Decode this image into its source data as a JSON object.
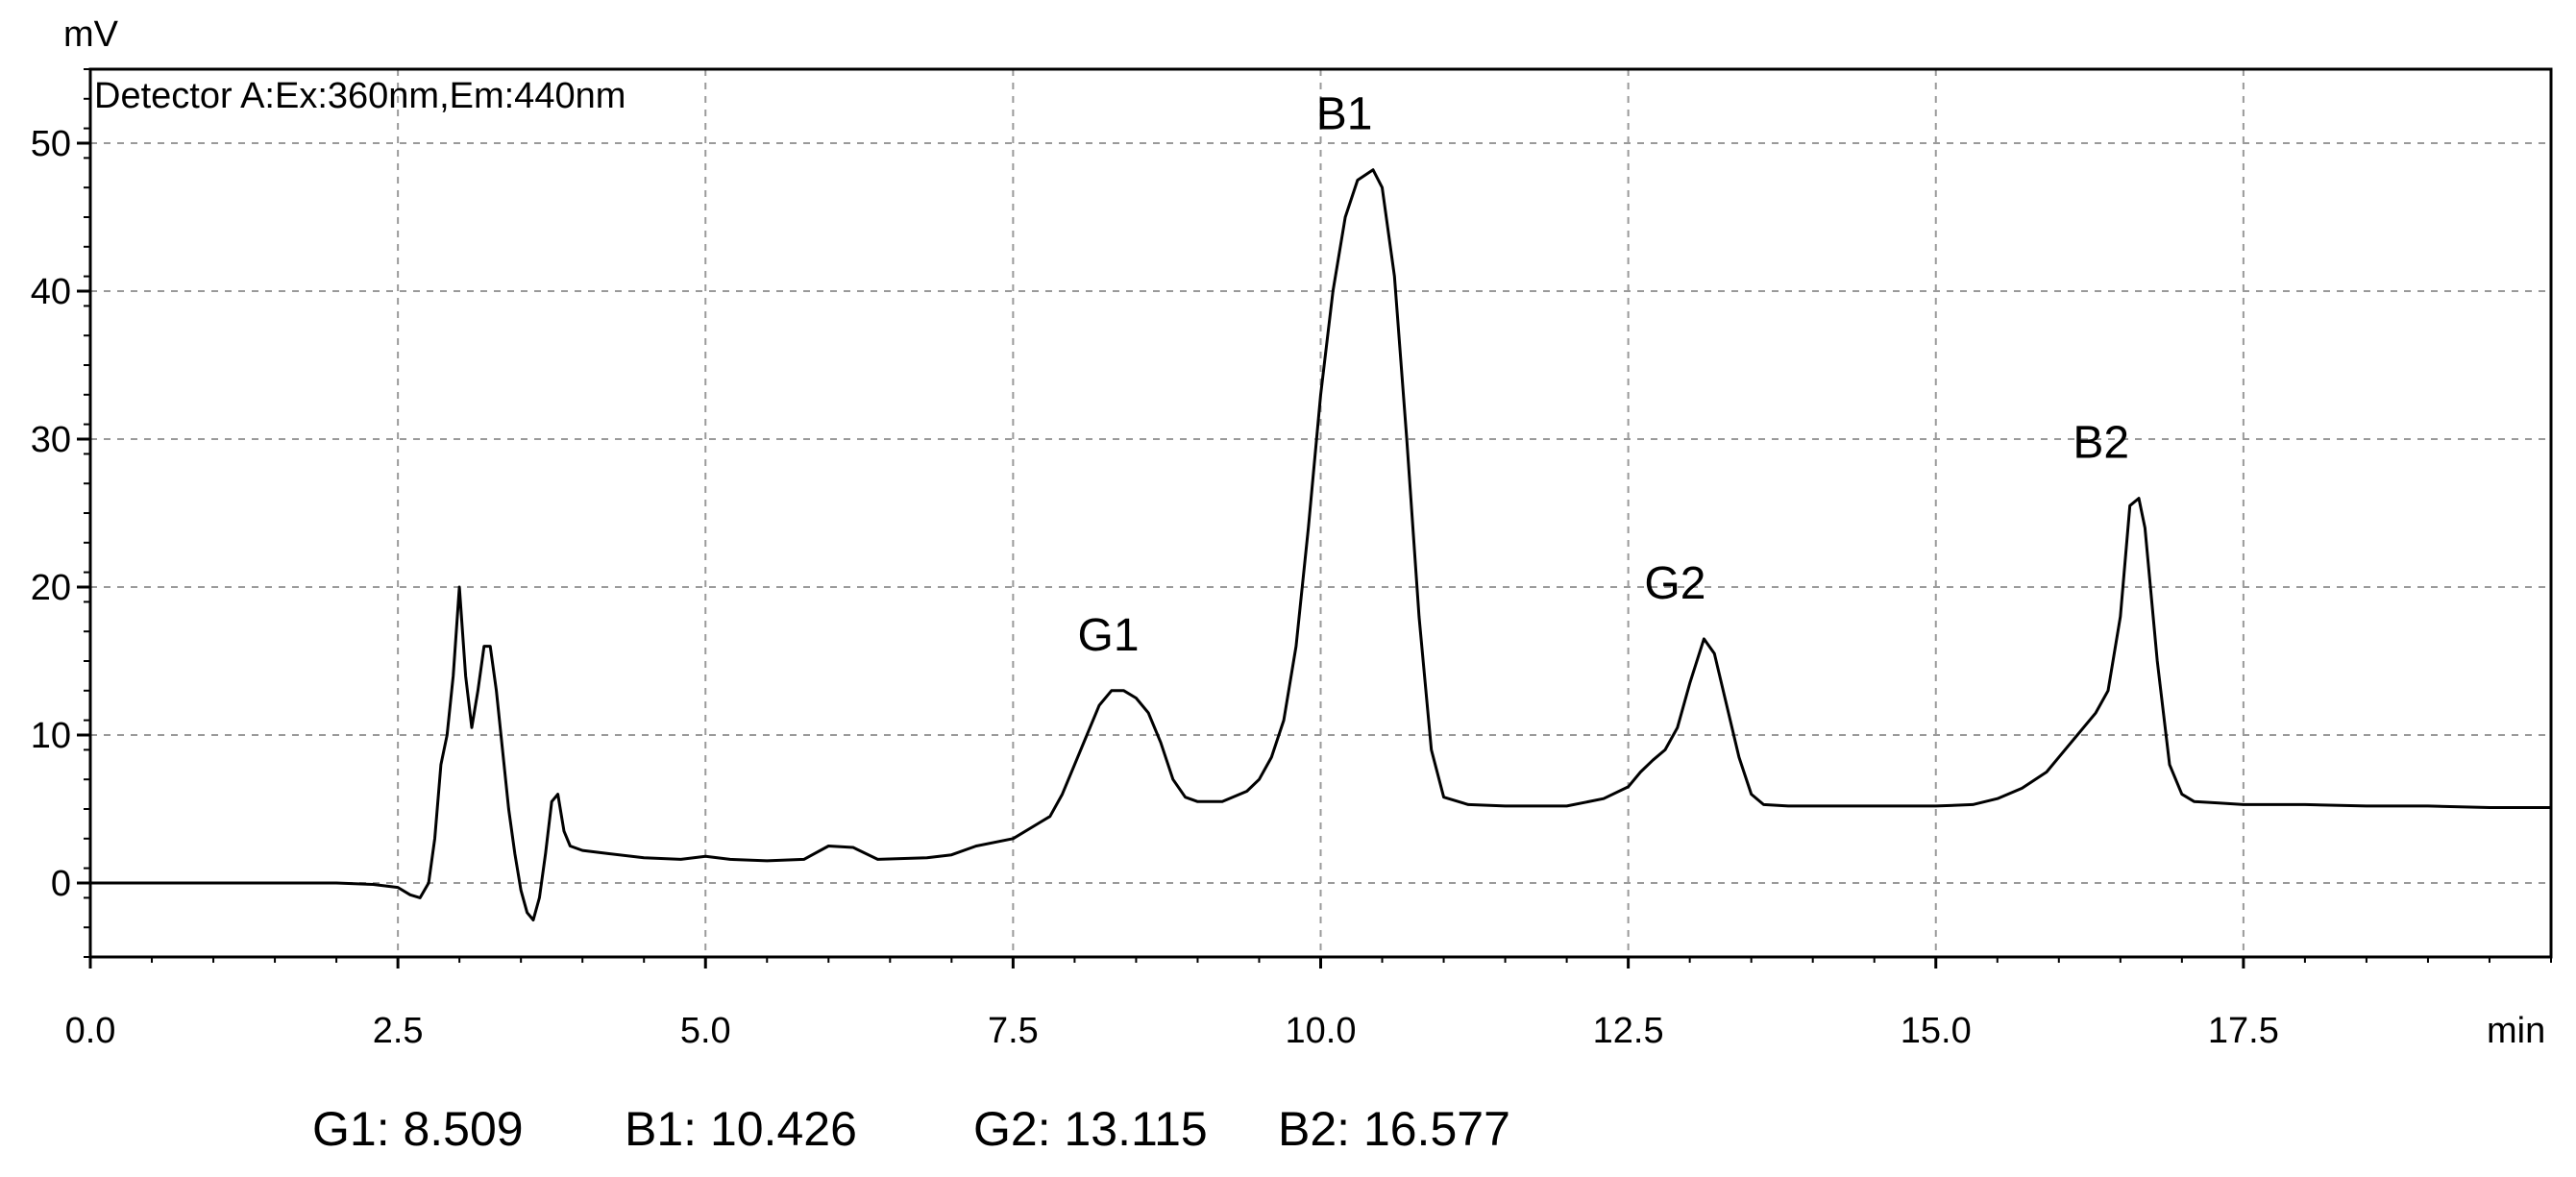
{
  "chart_data": {
    "type": "line",
    "y_unit_label": "mV",
    "x_unit_label": "min",
    "detector_label": "Detector A:Ex:360nm,Em:440nm",
    "xlim": [
      0,
      20
    ],
    "ylim": [
      -5,
      55
    ],
    "x_ticks": [
      0,
      2.5,
      5,
      7.5,
      10,
      12.5,
      15,
      17.5
    ],
    "x_tick_labels": [
      "0.0",
      "2.5",
      "5.0",
      "7.5",
      "10.0",
      "12.5",
      "15.0",
      "17.5"
    ],
    "y_ticks": [
      0,
      10,
      20,
      30,
      40,
      50
    ],
    "y_tick_labels": [
      "0",
      "10",
      "20",
      "30",
      "40",
      "50"
    ],
    "grid": true,
    "trace": {
      "x": [
        0,
        1.0,
        2.0,
        2.3,
        2.5,
        2.6,
        2.68,
        2.75,
        2.8,
        2.85,
        2.9,
        2.95,
        3.0,
        3.05,
        3.1,
        3.15,
        3.2,
        3.25,
        3.3,
        3.35,
        3.4,
        3.45,
        3.5,
        3.55,
        3.6,
        3.65,
        3.7,
        3.75,
        3.8,
        3.85,
        3.9,
        4.0,
        4.2,
        4.5,
        4.8,
        5.0,
        5.2,
        5.5,
        5.8,
        6.0,
        6.2,
        6.4,
        6.8,
        7.0,
        7.2,
        7.5,
        7.7,
        7.8,
        7.9,
        8.0,
        8.1,
        8.2,
        8.3,
        8.4,
        8.5,
        8.6,
        8.7,
        8.8,
        8.9,
        9.0,
        9.2,
        9.4,
        9.5,
        9.6,
        9.7,
        9.8,
        9.9,
        10.0,
        10.1,
        10.2,
        10.3,
        10.426,
        10.5,
        10.6,
        10.7,
        10.8,
        10.9,
        11.0,
        11.2,
        11.5,
        12.0,
        12.3,
        12.5,
        12.6,
        12.7,
        12.8,
        12.9,
        13.0,
        13.115,
        13.2,
        13.3,
        13.4,
        13.5,
        13.6,
        13.8,
        14.5,
        15.0,
        15.3,
        15.5,
        15.7,
        15.9,
        16.0,
        16.1,
        16.2,
        16.3,
        16.4,
        16.5,
        16.577,
        16.65,
        16.7,
        16.8,
        16.9,
        17.0,
        17.1,
        17.3,
        17.5,
        18.0,
        18.5,
        19.0,
        19.5,
        20.0
      ],
      "y": [
        0,
        0,
        0,
        -0.1,
        -0.3,
        -0.8,
        -1.0,
        0,
        3,
        8,
        10,
        14,
        20,
        14,
        10.5,
        13,
        16,
        16,
        13,
        9,
        5,
        2,
        -0.5,
        -2,
        -2.5,
        -1,
        2,
        5.5,
        6,
        3.5,
        2.5,
        2.2,
        2.0,
        1.7,
        1.6,
        1.8,
        1.6,
        1.5,
        1.6,
        2.5,
        2.4,
        1.6,
        1.7,
        1.9,
        2.5,
        3.0,
        4.0,
        4.5,
        6.0,
        8.0,
        10.0,
        12.0,
        13.0,
        13.0,
        12.5,
        11.5,
        9.5,
        7.0,
        5.8,
        5.5,
        5.5,
        6.2,
        7.0,
        8.5,
        11.0,
        16.0,
        24.0,
        33.0,
        40.0,
        45.0,
        47.5,
        48.2,
        47.0,
        41.0,
        30.0,
        18.0,
        9.0,
        5.8,
        5.3,
        5.2,
        5.2,
        5.7,
        6.5,
        7.5,
        8.3,
        9.0,
        10.5,
        13.5,
        16.5,
        15.5,
        12.0,
        8.5,
        6.0,
        5.3,
        5.2,
        5.2,
        5.2,
        5.3,
        5.7,
        6.4,
        7.5,
        8.5,
        9.5,
        10.5,
        11.5,
        13.0,
        18.0,
        25.5,
        26.0,
        24.0,
        15.0,
        8.0,
        6.0,
        5.5,
        5.4,
        5.3,
        5.3,
        5.2,
        5.2,
        5.1,
        5.1
      ]
    },
    "peaks": [
      {
        "label": "G1",
        "x": 8.509,
        "y": 13.0
      },
      {
        "label": "B1",
        "x": 10.426,
        "y": 48.2
      },
      {
        "label": "G2",
        "x": 13.115,
        "y": 16.5
      },
      {
        "label": "B2",
        "x": 16.577,
        "y": 26.0
      }
    ],
    "retention_times": [
      {
        "name": "G1",
        "text": "G1: 8.509"
      },
      {
        "name": "B1",
        "text": "B1: 10.426"
      },
      {
        "name": "G2",
        "text": "G2: 13.115"
      },
      {
        "name": "B2",
        "text": "B2: 16.577"
      }
    ]
  }
}
